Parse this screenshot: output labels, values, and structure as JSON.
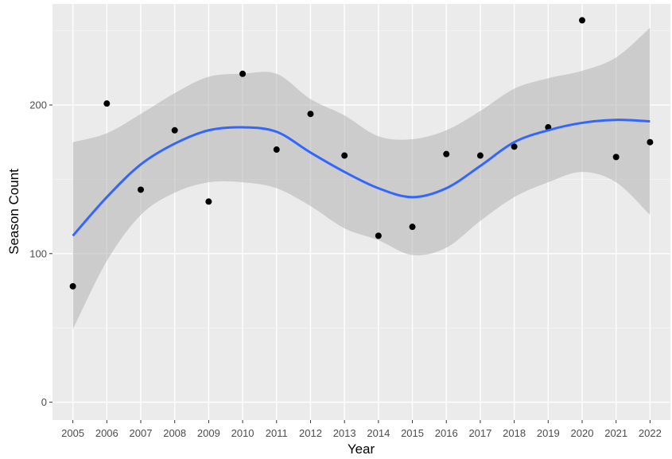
{
  "chart_data": {
    "type": "scatter",
    "title": "",
    "xlabel": "Year",
    "ylabel": "Season Count",
    "xlim": [
      2004.4,
      2022.6
    ],
    "ylim": [
      -12,
      268
    ],
    "y_ticks": [
      0,
      100,
      200
    ],
    "x_ticks": [
      2005,
      2006,
      2007,
      2008,
      2009,
      2010,
      2011,
      2012,
      2013,
      2014,
      2015,
      2016,
      2017,
      2018,
      2019,
      2020,
      2021,
      2022
    ],
    "grid": true,
    "points": {
      "x": [
        2005,
        2006,
        2007,
        2008,
        2009,
        2010,
        2011,
        2012,
        2013,
        2014,
        2015,
        2016,
        2017,
        2018,
        2019,
        2020,
        2021,
        2022
      ],
      "y": [
        78,
        201,
        143,
        183,
        135,
        221,
        170,
        194,
        166,
        112,
        118,
        167,
        166,
        172,
        185,
        257,
        165,
        175
      ]
    },
    "smooth": {
      "x": [
        2005,
        2006,
        2007,
        2008,
        2009,
        2010,
        2011,
        2012,
        2013,
        2014,
        2015,
        2016,
        2017,
        2018,
        2019,
        2020,
        2021,
        2022
      ],
      "y": [
        112,
        138,
        160,
        174,
        183,
        185,
        182,
        168,
        155,
        144,
        138,
        144,
        159,
        175,
        183,
        188,
        190,
        189
      ],
      "lower": [
        49,
        95,
        126,
        141,
        148,
        148,
        144,
        132,
        117,
        109,
        99,
        104,
        122,
        138,
        148,
        155,
        148,
        126
      ],
      "upper": [
        175,
        181,
        194,
        208,
        219,
        221,
        221,
        204,
        193,
        179,
        177,
        183,
        196,
        211,
        218,
        223,
        232,
        252
      ]
    },
    "colors": {
      "panel": "#ebebeb",
      "grid_major": "#ffffff",
      "grid_minor": "#f5f5f5",
      "point": "#000000",
      "line": "#3366ff",
      "band": "#b3b3b3"
    }
  }
}
